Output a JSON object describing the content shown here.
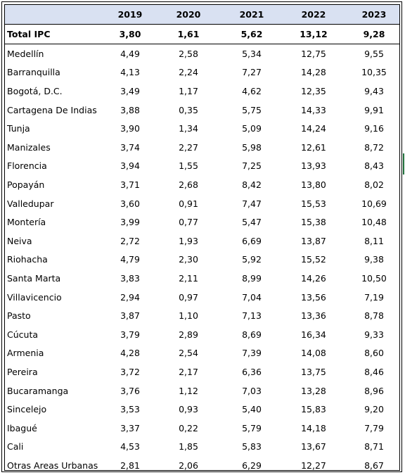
{
  "table": {
    "header": {
      "label": "",
      "years": [
        "2019",
        "2020",
        "2021",
        "2022",
        "2023"
      ]
    },
    "total": {
      "label": "Total IPC",
      "values": [
        "3,80",
        "1,61",
        "5,62",
        "13,12",
        "9,28"
      ]
    },
    "rows": [
      {
        "label": "Medellín",
        "values": [
          "4,49",
          "2,58",
          "5,34",
          "12,75",
          "9,55"
        ]
      },
      {
        "label": "Barranquilla",
        "values": [
          "4,13",
          "2,24",
          "7,27",
          "14,28",
          "10,35"
        ]
      },
      {
        "label": "Bogotá, D.C.",
        "values": [
          "3,49",
          "1,17",
          "4,62",
          "12,35",
          "9,43"
        ]
      },
      {
        "label": "Cartagena De Indias",
        "values": [
          "3,88",
          "0,35",
          "5,75",
          "14,33",
          "9,91"
        ]
      },
      {
        "label": "Tunja",
        "values": [
          "3,90",
          "1,34",
          "5,09",
          "14,24",
          "9,16"
        ]
      },
      {
        "label": "Manizales",
        "values": [
          "3,74",
          "2,27",
          "5,98",
          "12,61",
          "8,72"
        ]
      },
      {
        "label": "Florencia",
        "values": [
          "3,94",
          "1,55",
          "7,25",
          "13,93",
          "8,43"
        ]
      },
      {
        "label": "Popayán",
        "values": [
          "3,71",
          "2,68",
          "8,42",
          "13,80",
          "8,02"
        ]
      },
      {
        "label": "Valledupar",
        "values": [
          "3,60",
          "0,91",
          "7,47",
          "15,53",
          "10,69"
        ]
      },
      {
        "label": "Montería",
        "values": [
          "3,99",
          "0,77",
          "5,47",
          "15,38",
          "10,48"
        ]
      },
      {
        "label": "Neiva",
        "values": [
          "2,72",
          "1,93",
          "6,69",
          "13,87",
          "8,11"
        ]
      },
      {
        "label": "Riohacha",
        "values": [
          "4,79",
          "2,30",
          "5,92",
          "15,52",
          "9,38"
        ]
      },
      {
        "label": "Santa Marta",
        "values": [
          "3,83",
          "2,11",
          "8,99",
          "14,26",
          "10,50"
        ]
      },
      {
        "label": "Villavicencio",
        "values": [
          "2,94",
          "0,97",
          "7,04",
          "13,56",
          "7,19"
        ]
      },
      {
        "label": "Pasto",
        "values": [
          "3,87",
          "1,10",
          "7,13",
          "13,36",
          "8,78"
        ]
      },
      {
        "label": "Cúcuta",
        "values": [
          "3,79",
          "2,89",
          "8,69",
          "16,34",
          "9,33"
        ]
      },
      {
        "label": "Armenia",
        "values": [
          "4,28",
          "2,54",
          "7,39",
          "14,08",
          "8,60"
        ]
      },
      {
        "label": "Pereira",
        "values": [
          "3,72",
          "2,17",
          "6,36",
          "13,75",
          "8,46"
        ]
      },
      {
        "label": "Bucaramanga",
        "values": [
          "3,76",
          "1,12",
          "7,03",
          "13,28",
          "8,96"
        ]
      },
      {
        "label": "Sincelejo",
        "values": [
          "3,53",
          "0,93",
          "5,40",
          "15,83",
          "9,20"
        ]
      },
      {
        "label": "Ibagué",
        "values": [
          "3,37",
          "0,22",
          "5,79",
          "14,18",
          "7,79"
        ]
      },
      {
        "label": "Cali",
        "values": [
          "4,53",
          "1,85",
          "5,83",
          "13,67",
          "8,71"
        ]
      },
      {
        "label": "Otras Areas Urbanas",
        "values": [
          "2,81",
          "2,06",
          "6,29",
          "12,27",
          "8,67"
        ]
      }
    ]
  },
  "colors": {
    "header_fill": "#d9e1f2",
    "border": "#000000",
    "side_mark": "#1f6f3a"
  }
}
